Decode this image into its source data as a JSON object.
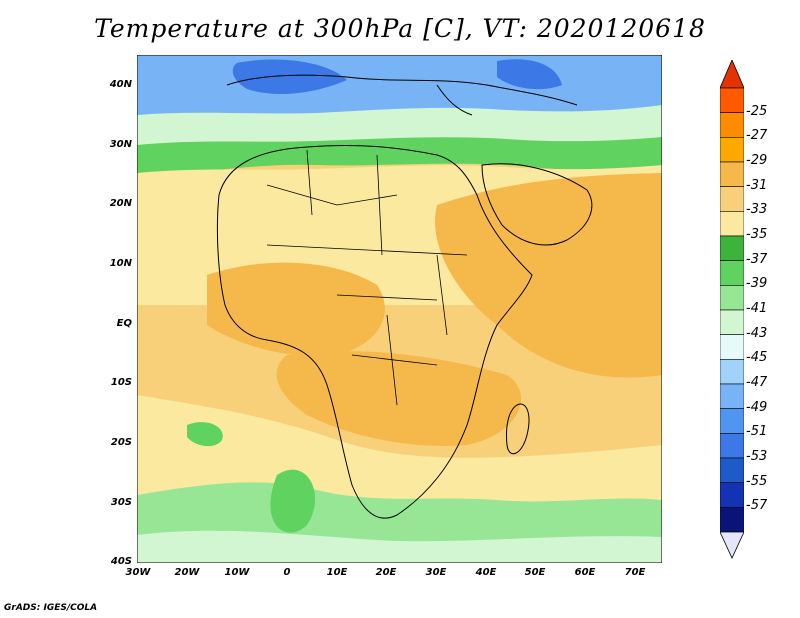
{
  "title": "Temperature at 300hPa [C], VT: 2020120618",
  "credit": "GrADS: IGES/COLA",
  "lat_labels": [
    "40N",
    "30N",
    "20N",
    "10N",
    "EQ",
    "10S",
    "20S",
    "30S",
    "40S"
  ],
  "lon_labels": [
    "30W",
    "20W",
    "10W",
    "0",
    "10E",
    "20E",
    "30E",
    "40E",
    "50E",
    "60E",
    "70E"
  ],
  "colorbar": {
    "labels": [
      "-25",
      "-27",
      "-29",
      "-31",
      "-33",
      "-35",
      "-37",
      "-39",
      "-41",
      "-43",
      "-45",
      "-47",
      "-49",
      "-51",
      "-53",
      "-55",
      "-57"
    ],
    "colors": [
      "#ff5a00",
      "#ff8c00",
      "#ffa800",
      "#f5b84a",
      "#f9d07a",
      "#fbe9a0",
      "#3cb43c",
      "#5fd25f",
      "#96e696",
      "#d2f5d2",
      "#e6fafa",
      "#a0d2fa",
      "#78b4f5",
      "#5096f0",
      "#3c78e6",
      "#1e5ac8",
      "#1432b4",
      "#0a1478"
    ],
    "top_arrow_color": "#e63200",
    "bottom_arrow_color": "#e6e6fa"
  }
}
